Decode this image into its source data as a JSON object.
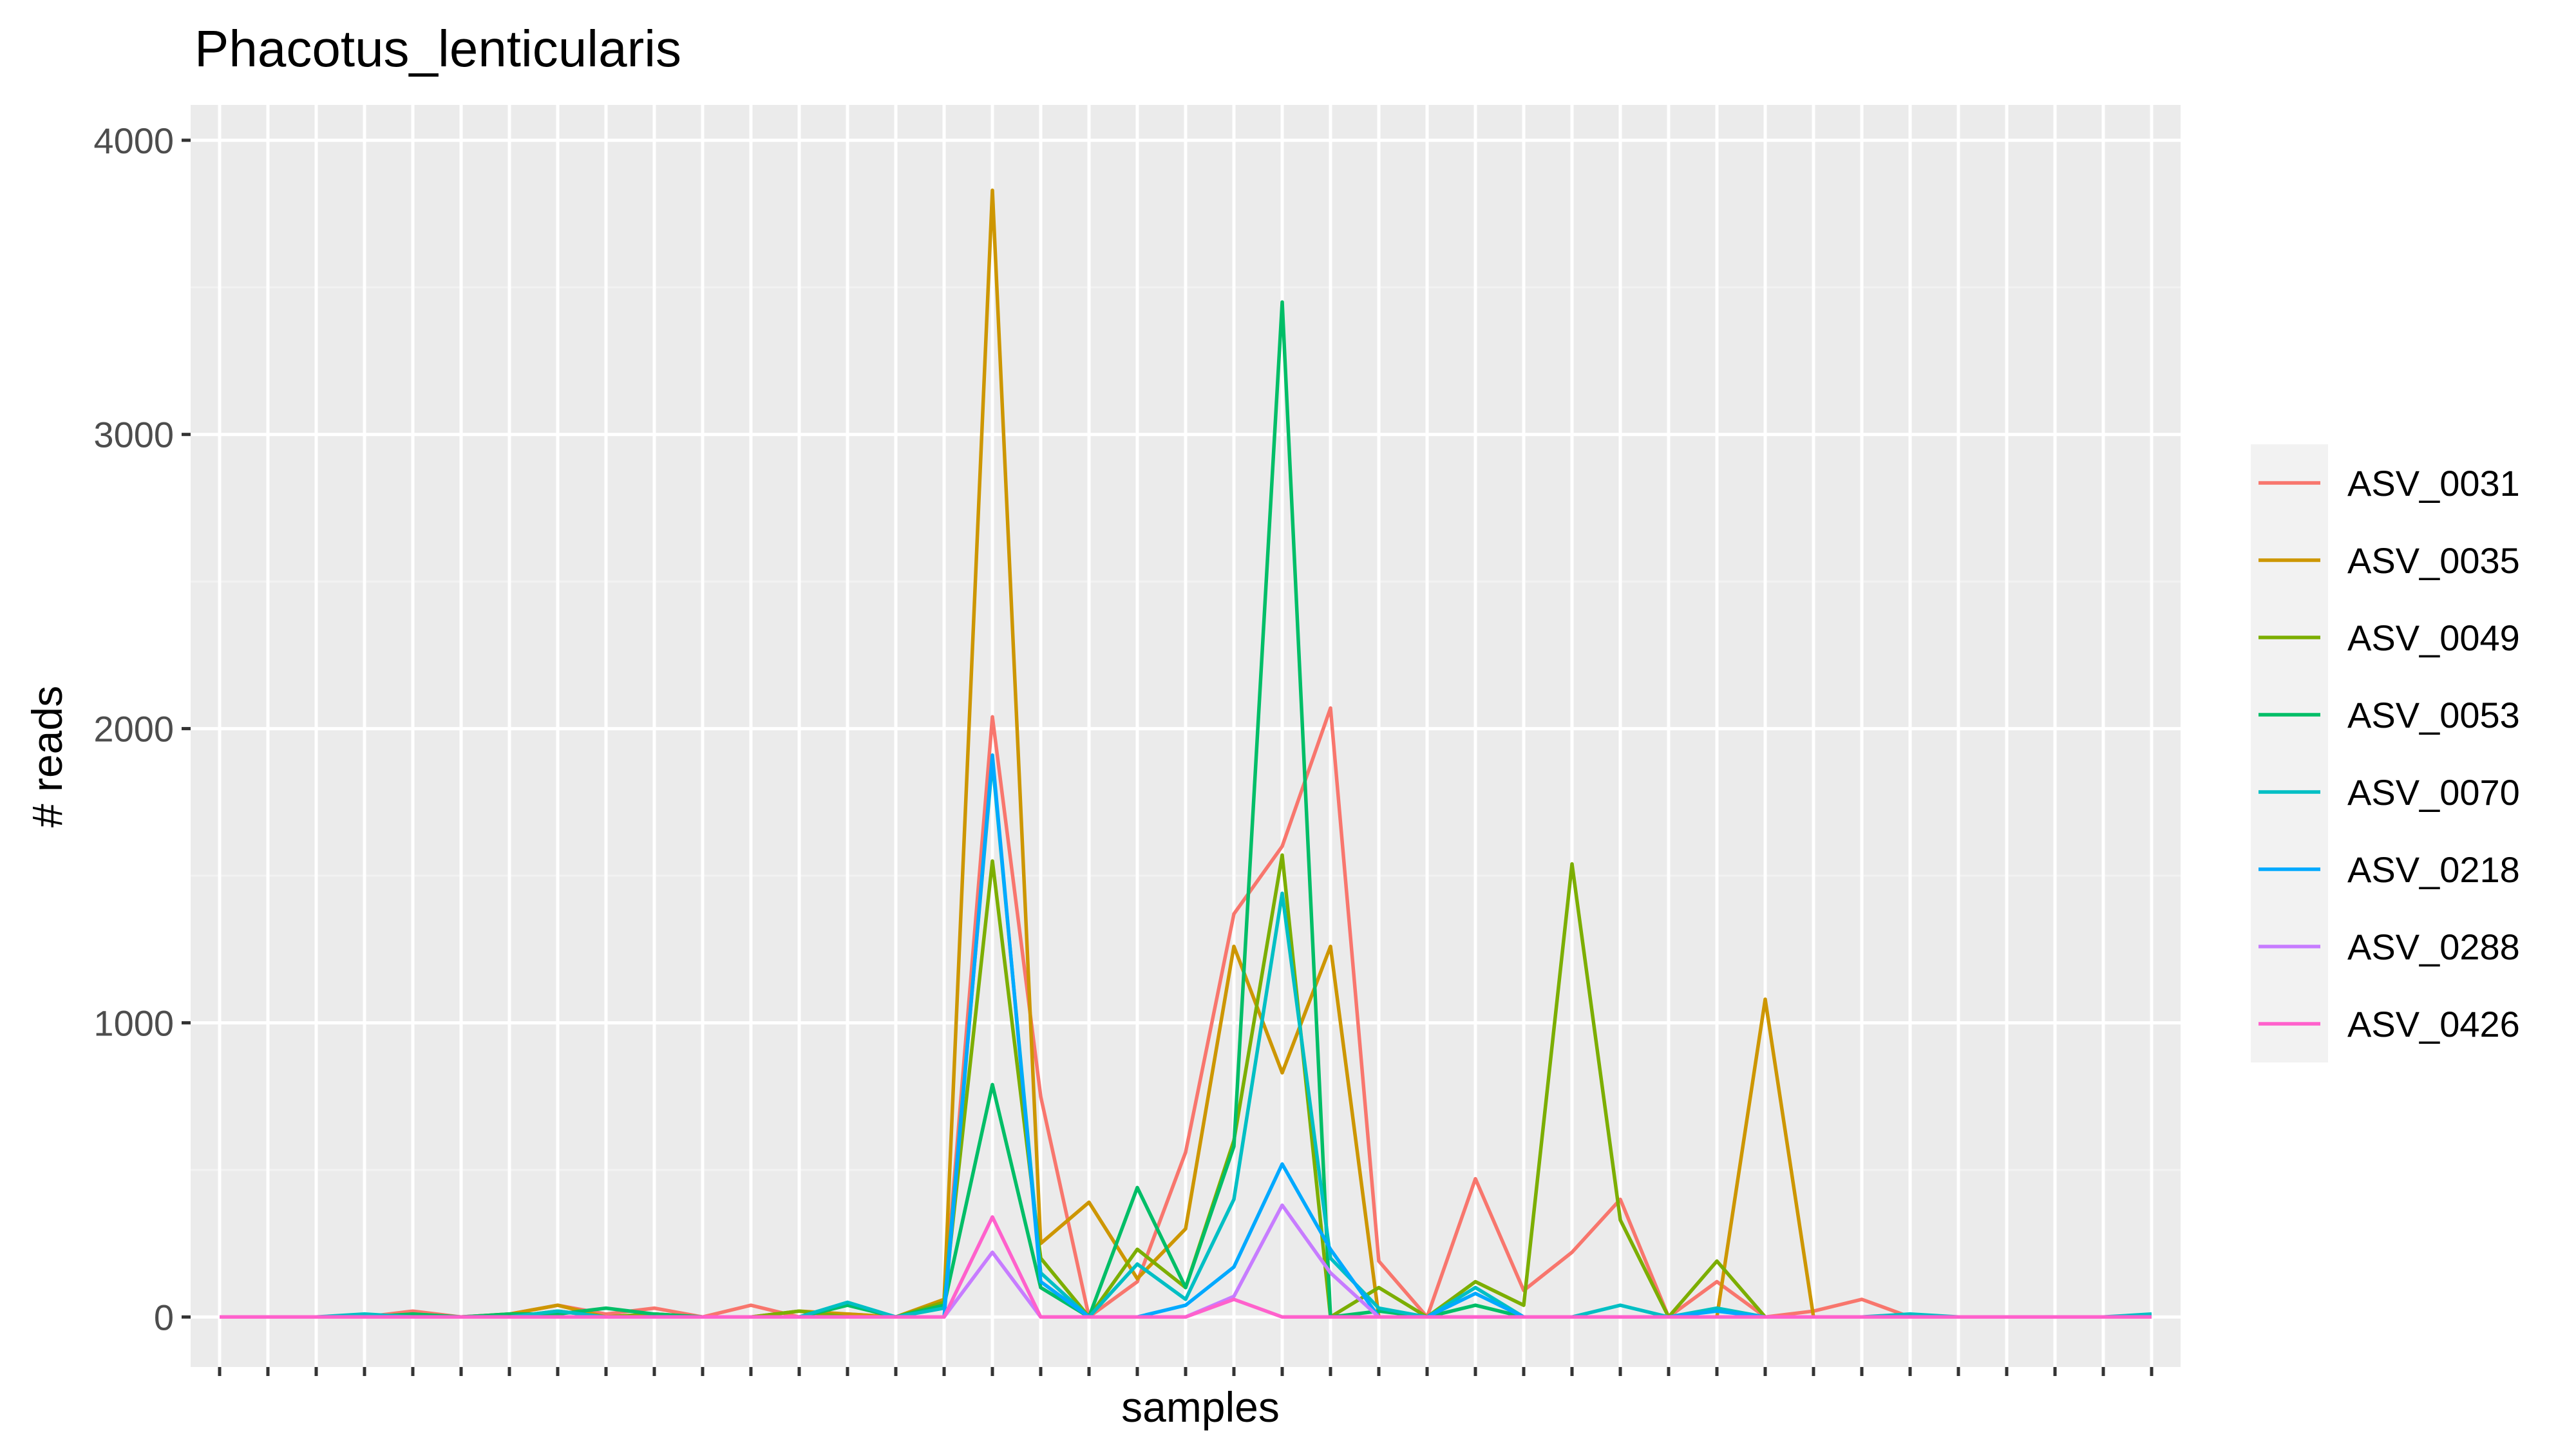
{
  "chart_data": {
    "type": "line",
    "title": "Phacotus_lenticularis",
    "xlabel": "samples",
    "ylabel": "# reads",
    "x": [
      1,
      2,
      3,
      4,
      5,
      6,
      7,
      8,
      9,
      10,
      11,
      12,
      13,
      14,
      15,
      16,
      17,
      18,
      19,
      20,
      21,
      22,
      23,
      24,
      25,
      26,
      27,
      28,
      29,
      30,
      31,
      32,
      33,
      34,
      35,
      36,
      37,
      38,
      39,
      40,
      41
    ],
    "ylim": [
      -170,
      4120
    ],
    "yticks": [
      0,
      1000,
      2000,
      3000,
      4000
    ],
    "ytick_labels": [
      "0",
      "1000",
      "2000",
      "3000",
      "4000"
    ],
    "x_tick_labels": "none",
    "grid": true,
    "legend": "right",
    "series": [
      {
        "name": "ASV_0031",
        "color": "#F8766D",
        "values": [
          0,
          0,
          0,
          0,
          20,
          0,
          10,
          40,
          10,
          30,
          0,
          40,
          0,
          10,
          0,
          50,
          2040,
          750,
          0,
          120,
          560,
          1370,
          1600,
          2070,
          190,
          0,
          470,
          90,
          220,
          400,
          0,
          120,
          0,
          20,
          60,
          0,
          0,
          0,
          0,
          0,
          0
        ]
      },
      {
        "name": "ASV_0035",
        "color": "#CD9600",
        "values": [
          0,
          0,
          0,
          0,
          10,
          0,
          10,
          40,
          0,
          10,
          0,
          0,
          20,
          10,
          0,
          60,
          3830,
          250,
          390,
          130,
          300,
          1260,
          830,
          1260,
          0,
          0,
          0,
          0,
          0,
          0,
          0,
          0,
          1080,
          0,
          0,
          0,
          0,
          0,
          0,
          0,
          0
        ]
      },
      {
        "name": "ASV_0049",
        "color": "#7CAE00",
        "values": [
          0,
          0,
          0,
          0,
          0,
          0,
          0,
          20,
          0,
          10,
          0,
          0,
          20,
          0,
          0,
          50,
          1550,
          200,
          0,
          230,
          100,
          600,
          1570,
          0,
          100,
          0,
          120,
          40,
          1540,
          330,
          0,
          190,
          0,
          0,
          0,
          0,
          0,
          0,
          0,
          0,
          0
        ]
      },
      {
        "name": "ASV_0053",
        "color": "#00BE67",
        "values": [
          0,
          0,
          0,
          0,
          10,
          0,
          10,
          10,
          30,
          10,
          0,
          0,
          0,
          40,
          0,
          40,
          790,
          100,
          0,
          440,
          100,
          580,
          3450,
          0,
          20,
          0,
          40,
          0,
          0,
          0,
          0,
          0,
          0,
          0,
          0,
          0,
          0,
          0,
          0,
          0,
          0
        ]
      },
      {
        "name": "ASV_0070",
        "color": "#00BFC4",
        "values": [
          0,
          0,
          0,
          10,
          0,
          0,
          0,
          20,
          0,
          0,
          0,
          0,
          0,
          50,
          0,
          30,
          1890,
          150,
          0,
          180,
          60,
          400,
          1440,
          200,
          30,
          0,
          100,
          0,
          0,
          40,
          0,
          30,
          0,
          0,
          0,
          10,
          0,
          0,
          0,
          0,
          10
        ]
      },
      {
        "name": "ASV_0218",
        "color": "#00A9FF",
        "values": [
          0,
          0,
          0,
          0,
          0,
          0,
          0,
          0,
          0,
          0,
          0,
          0,
          0,
          0,
          0,
          0,
          1910,
          120,
          0,
          0,
          40,
          170,
          520,
          230,
          0,
          0,
          80,
          0,
          0,
          0,
          0,
          20,
          0,
          0,
          0,
          0,
          0,
          0,
          0,
          0,
          0
        ]
      },
      {
        "name": "ASV_0288",
        "color": "#C77CFF",
        "values": [
          0,
          0,
          0,
          0,
          0,
          0,
          0,
          0,
          0,
          0,
          0,
          0,
          0,
          0,
          0,
          0,
          220,
          0,
          0,
          0,
          0,
          70,
          380,
          150,
          0,
          0,
          0,
          0,
          0,
          0,
          0,
          0,
          0,
          0,
          0,
          0,
          0,
          0,
          0,
          0,
          0
        ]
      },
      {
        "name": "ASV_0426",
        "color": "#FF61CC",
        "values": [
          0,
          0,
          0,
          0,
          0,
          0,
          0,
          0,
          0,
          0,
          0,
          0,
          0,
          0,
          0,
          0,
          340,
          0,
          0,
          0,
          0,
          60,
          0,
          0,
          0,
          0,
          0,
          0,
          0,
          0,
          0,
          0,
          0,
          0,
          0,
          0,
          0,
          0,
          0,
          0,
          0
        ]
      }
    ]
  },
  "colors": {
    "panel_background": "#EBEBEB",
    "grid_major": "#FFFFFF",
    "grid_minor": "#F2F2F2",
    "legend_key_background": "#F2F2F2",
    "tick_text": "#4D4D4D",
    "tick_mark": "#333333"
  }
}
